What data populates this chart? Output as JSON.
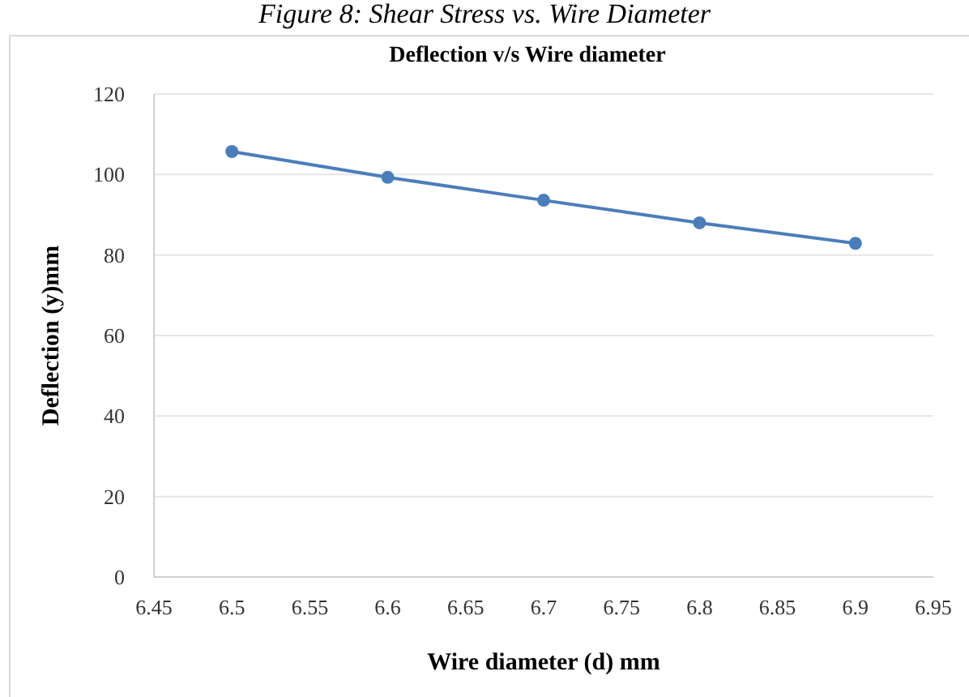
{
  "chart_data": {
    "type": "line",
    "title": "Deflection v/s Wire diameter",
    "xlabel": "Wire diameter (d) mm",
    "ylabel": "Deflection (y)mm",
    "annotations": [
      "Figure 8: Shear Stress vs. Wire Diameter"
    ],
    "x": [
      6.5,
      6.6,
      6.7,
      6.8,
      6.9
    ],
    "series": [
      {
        "color": "#4a7ebb",
        "values": [
          105.7,
          99.3,
          93.6,
          88.0,
          82.9
        ]
      }
    ],
    "xlim": [
      6.45,
      6.95
    ],
    "xticks": [
      6.45,
      6.5,
      6.55,
      6.6,
      6.65,
      6.7,
      6.75,
      6.8,
      6.85,
      6.9,
      6.95
    ],
    "ylim": [
      0,
      120
    ],
    "yticks": [
      0,
      20,
      40,
      60,
      80,
      100,
      120
    ],
    "grid": "y",
    "marker": "circle",
    "line_style": "solid"
  }
}
